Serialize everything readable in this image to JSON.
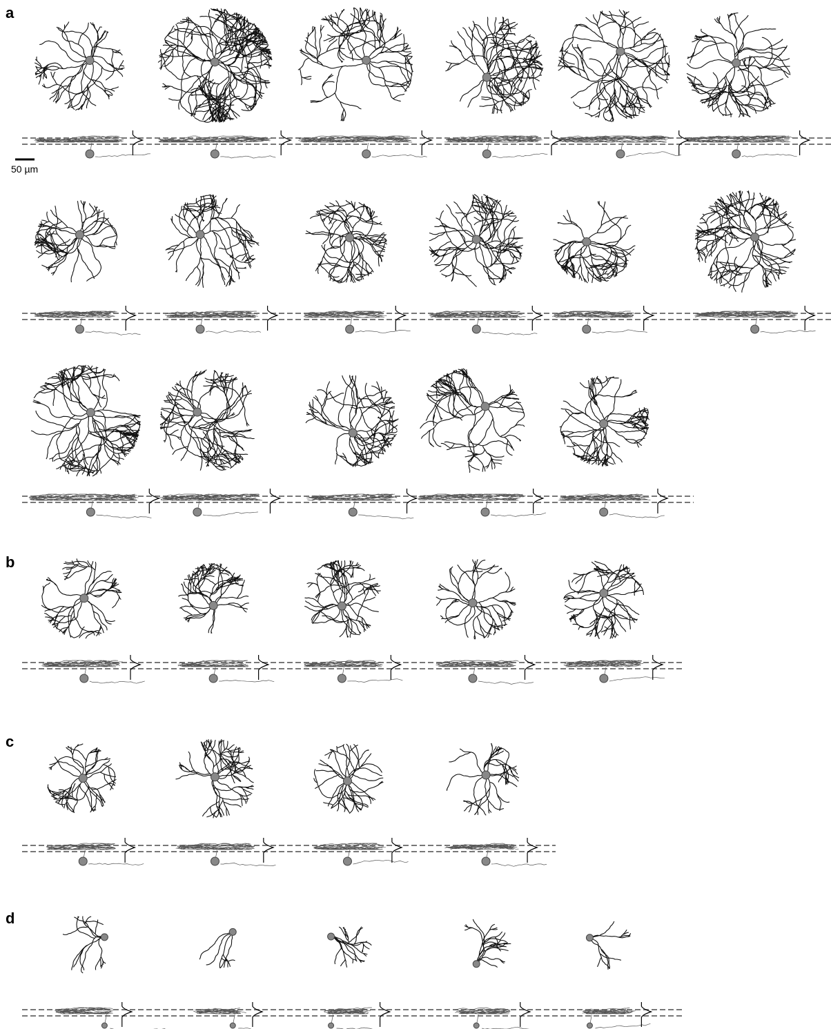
{
  "panels": [
    {
      "label": "a"
    },
    {
      "label": "b"
    },
    {
      "label": "c"
    },
    {
      "label": "d"
    }
  ],
  "scale_bar": {
    "label": "50 µm"
  }
}
